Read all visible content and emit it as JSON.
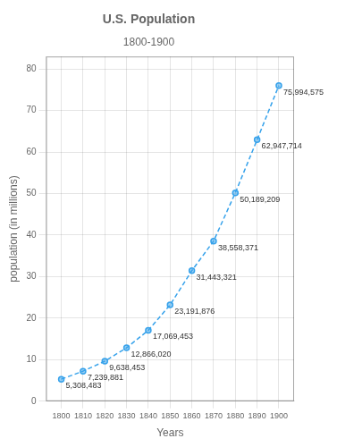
{
  "chart_data": {
    "type": "line",
    "title": "U.S. Population",
    "subtitle": "1800-1900",
    "xlabel": "Years",
    "ylabel": "population (in millions)",
    "x": [
      1800,
      1810,
      1820,
      1830,
      1840,
      1850,
      1860,
      1870,
      1880,
      1890,
      1900
    ],
    "values": [
      5.308483,
      7.239881,
      9.638453,
      12.86602,
      17.069453,
      23.191876,
      31.443321,
      38.558371,
      50.189209,
      62.947714,
      75.994575
    ],
    "value_labels": [
      "5,308,483",
      "7,239,881",
      "9,638,453",
      "12,866,020",
      "17,069,453",
      "23,191,876",
      "31,443,321",
      "38,558,371",
      "50,189,209",
      "62,947,714",
      "75,994,575"
    ],
    "data_labels": true,
    "xlim": [
      1793,
      1907
    ],
    "ylim": [
      0,
      83
    ],
    "xticks": [
      1800,
      1810,
      1820,
      1830,
      1840,
      1850,
      1860,
      1870,
      1880,
      1890,
      1900
    ],
    "yticks": [
      0,
      10,
      20,
      30,
      40,
      50,
      60,
      70,
      80
    ],
    "grid": true,
    "marker": "circle",
    "line_style": "dashed"
  }
}
